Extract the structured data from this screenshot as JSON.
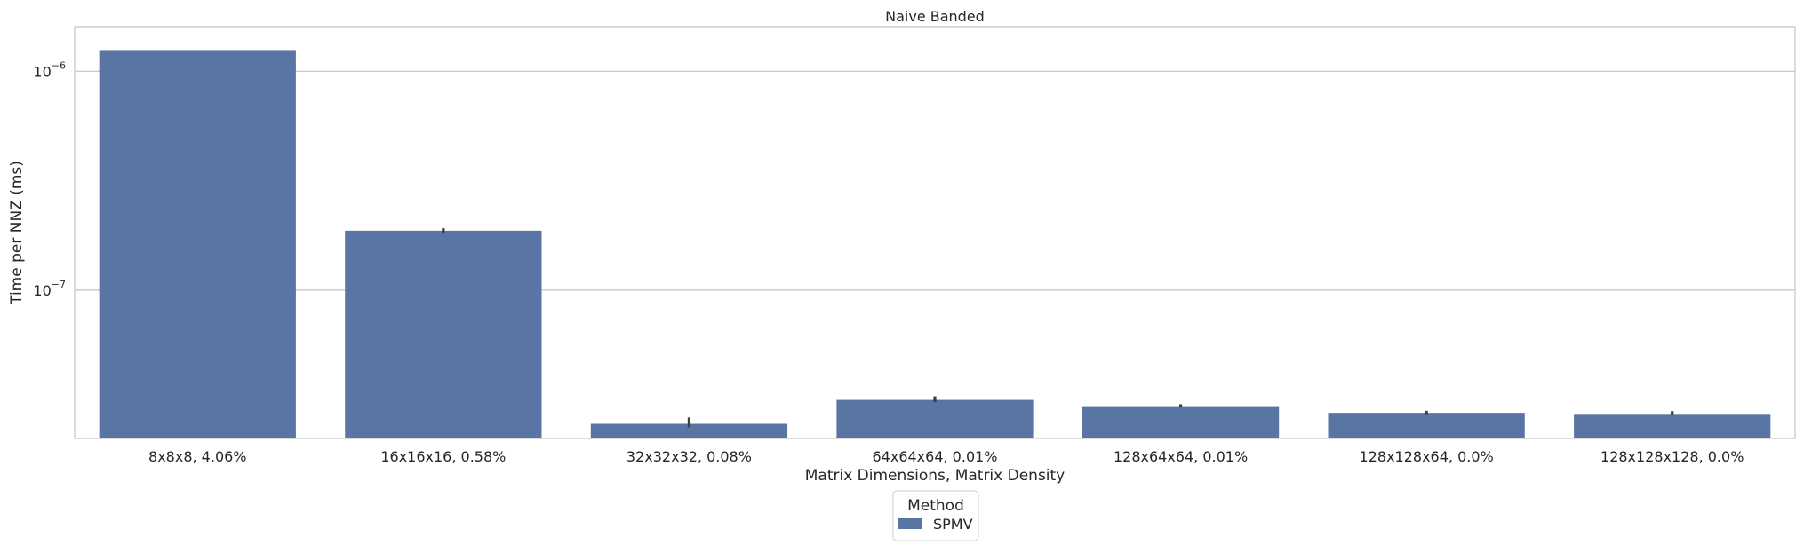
{
  "chart_data": {
    "type": "bar",
    "title": "Naive Banded",
    "xlabel": "Matrix Dimensions, Matrix Density",
    "ylabel": "Time per NNZ (ms)",
    "yscale": "log",
    "ylim": [
      2.1e-08,
      1.6e-06
    ],
    "yticks": [
      {
        "value": 1e-06,
        "base": "10",
        "exp": "−6"
      },
      {
        "value": 1e-07,
        "base": "10",
        "exp": "−7"
      }
    ],
    "grid": "horizontal",
    "categories": [
      "8x8x8, 4.06%",
      "16x16x16, 0.58%",
      "32x32x32, 0.08%",
      "64x64x64, 0.01%",
      "128x64x64, 0.01%",
      "128x128x64, 0.0%",
      "128x128x128, 0.0%"
    ],
    "series": [
      {
        "name": "SPMV",
        "color": "#5975a4",
        "values": [
          1.25e-06,
          1.87e-07,
          2.45e-08,
          3.15e-08,
          2.95e-08,
          2.75e-08,
          2.72e-08
        ],
        "error_low": [
          null,
          1.82e-07,
          2.36e-08,
          3.08e-08,
          2.91e-08,
          2.71e-08,
          2.68e-08
        ],
        "error_high": [
          null,
          1.92e-07,
          2.62e-08,
          3.27e-08,
          3.01e-08,
          2.81e-08,
          2.8e-08
        ]
      }
    ],
    "legend": {
      "title": "Method",
      "position": "bottom-center"
    }
  }
}
